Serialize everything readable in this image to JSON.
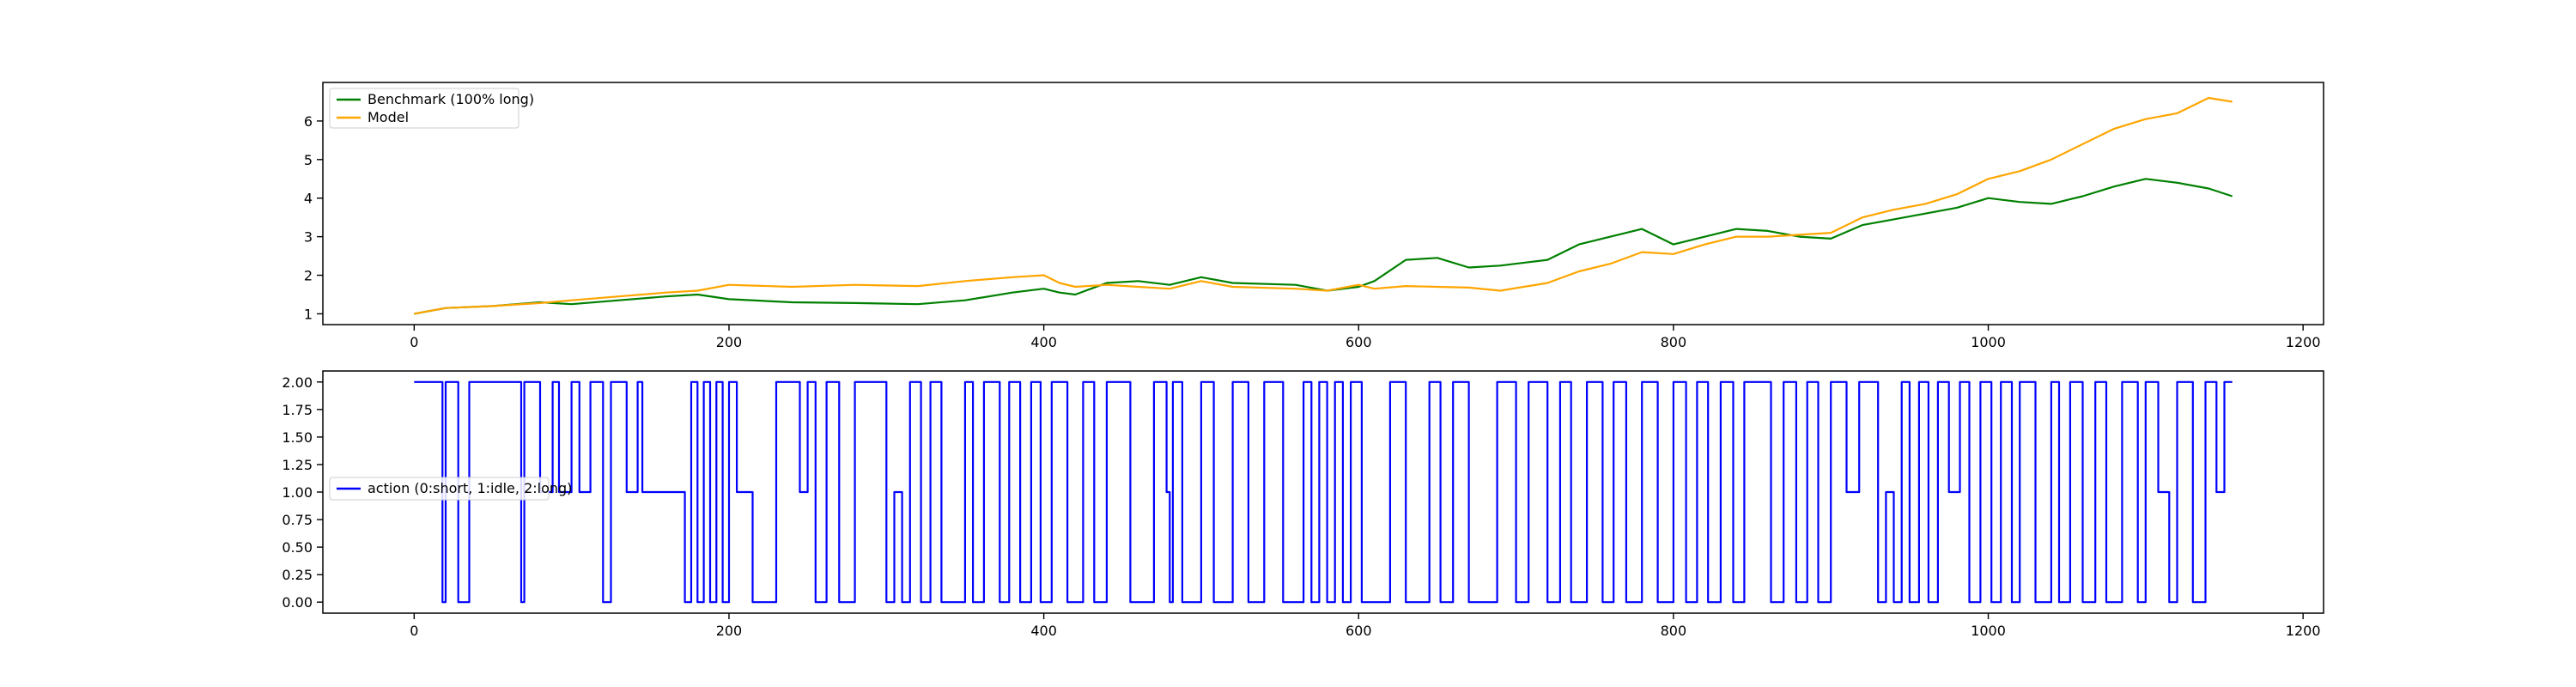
{
  "chart_data": [
    {
      "type": "line",
      "title": "",
      "xlabel": "",
      "ylabel": "",
      "xlim": [
        -58,
        1213
      ],
      "ylim": [
        0.72,
        7.0
      ],
      "x_ticks": [
        0,
        200,
        400,
        600,
        800,
        1000,
        1200
      ],
      "y_ticks": [
        1,
        2,
        3,
        4,
        5,
        6
      ],
      "x_tick_labels": [
        "0",
        "200",
        "400",
        "600",
        "800",
        "1000",
        "1200"
      ],
      "y_tick_labels": [
        "1",
        "2",
        "3",
        "4",
        "5",
        "6"
      ],
      "grid": false,
      "legend_position": "upper-left",
      "series": [
        {
          "name": "Benchmark (100% long)",
          "color": "#008000",
          "x": [
            0,
            20,
            50,
            80,
            100,
            130,
            160,
            180,
            200,
            240,
            280,
            320,
            350,
            380,
            400,
            410,
            420,
            440,
            460,
            480,
            500,
            520,
            560,
            580,
            600,
            610,
            630,
            650,
            670,
            690,
            720,
            740,
            760,
            780,
            800,
            820,
            840,
            860,
            880,
            900,
            920,
            940,
            960,
            980,
            1000,
            1020,
            1040,
            1060,
            1080,
            1100,
            1120,
            1140,
            1155
          ],
          "y": [
            1.0,
            1.15,
            1.2,
            1.3,
            1.25,
            1.35,
            1.45,
            1.5,
            1.38,
            1.3,
            1.28,
            1.25,
            1.35,
            1.55,
            1.65,
            1.55,
            1.5,
            1.8,
            1.85,
            1.75,
            1.95,
            1.8,
            1.75,
            1.6,
            1.7,
            1.85,
            2.4,
            2.45,
            2.2,
            2.25,
            2.4,
            2.8,
            3.0,
            3.2,
            2.8,
            3.0,
            3.2,
            3.15,
            3.0,
            2.95,
            3.3,
            3.45,
            3.6,
            3.75,
            4.0,
            3.9,
            3.85,
            4.05,
            4.3,
            4.5,
            4.4,
            4.25,
            4.05
          ]
        },
        {
          "name": "Model",
          "color": "#FFA500",
          "x": [
            0,
            20,
            50,
            80,
            100,
            130,
            160,
            180,
            200,
            240,
            280,
            320,
            350,
            380,
            400,
            410,
            420,
            440,
            460,
            480,
            500,
            520,
            560,
            580,
            600,
            610,
            630,
            650,
            670,
            690,
            720,
            740,
            760,
            780,
            800,
            820,
            840,
            860,
            880,
            900,
            920,
            940,
            960,
            980,
            1000,
            1020,
            1040,
            1060,
            1080,
            1100,
            1120,
            1140,
            1155
          ],
          "y": [
            1.0,
            1.15,
            1.2,
            1.28,
            1.35,
            1.45,
            1.55,
            1.6,
            1.75,
            1.7,
            1.75,
            1.72,
            1.85,
            1.95,
            2.0,
            1.8,
            1.7,
            1.75,
            1.7,
            1.65,
            1.85,
            1.7,
            1.65,
            1.6,
            1.75,
            1.65,
            1.72,
            1.7,
            1.68,
            1.6,
            1.8,
            2.1,
            2.3,
            2.6,
            2.55,
            2.8,
            3.0,
            3.0,
            3.05,
            3.1,
            3.5,
            3.7,
            3.85,
            4.1,
            4.5,
            4.7,
            5.0,
            5.4,
            5.8,
            6.05,
            6.2,
            6.6,
            6.5
          ]
        }
      ]
    },
    {
      "type": "line",
      "title": "",
      "xlabel": "",
      "ylabel": "",
      "xlim": [
        -58,
        1213
      ],
      "ylim": [
        -0.1,
        2.1
      ],
      "x_ticks": [
        0,
        200,
        400,
        600,
        800,
        1000,
        1200
      ],
      "y_ticks": [
        0.0,
        0.25,
        0.5,
        0.75,
        1.0,
        1.25,
        1.5,
        1.75,
        2.0
      ],
      "x_tick_labels": [
        "0",
        "200",
        "400",
        "600",
        "800",
        "1000",
        "1200"
      ],
      "y_tick_labels": [
        "0.00",
        "0.25",
        "0.50",
        "0.75",
        "1.00",
        "1.25",
        "1.50",
        "1.75",
        "2.00"
      ],
      "grid": false,
      "legend_position": "center-left",
      "series": [
        {
          "name": "action (0:short, 1:idle, 2:long)",
          "color": "#0000FF",
          "step": true,
          "x": [
            0,
            18,
            20,
            28,
            35,
            68,
            70,
            80,
            88,
            92,
            100,
            105,
            112,
            120,
            125,
            135,
            142,
            145,
            172,
            176,
            180,
            184,
            188,
            192,
            196,
            200,
            205,
            215,
            230,
            245,
            250,
            255,
            262,
            270,
            280,
            300,
            305,
            310,
            315,
            322,
            328,
            335,
            350,
            355,
            362,
            372,
            378,
            385,
            392,
            398,
            405,
            415,
            425,
            432,
            440,
            455,
            470,
            478,
            480,
            482,
            488,
            500,
            508,
            520,
            530,
            540,
            552,
            565,
            570,
            575,
            580,
            585,
            590,
            595,
            602,
            620,
            630,
            645,
            652,
            660,
            670,
            688,
            700,
            708,
            720,
            728,
            735,
            745,
            755,
            762,
            770,
            780,
            790,
            800,
            808,
            815,
            822,
            830,
            838,
            845,
            862,
            870,
            878,
            885,
            892,
            900,
            910,
            918,
            930,
            935,
            940,
            945,
            950,
            956,
            962,
            968,
            975,
            982,
            988,
            995,
            1002,
            1008,
            1015,
            1020,
            1030,
            1040,
            1045,
            1052,
            1060,
            1068,
            1075,
            1085,
            1095,
            1100,
            1108,
            1115,
            1120,
            1130,
            1138,
            1145,
            1150,
            1155
          ],
          "y": [
            2,
            0,
            2,
            0,
            2,
            0,
            2,
            1,
            2,
            1,
            2,
            1,
            2,
            0,
            2,
            1,
            2,
            1,
            0,
            2,
            0,
            2,
            0,
            2,
            0,
            2,
            1,
            0,
            2,
            1,
            2,
            0,
            2,
            0,
            2,
            0,
            1,
            0,
            2,
            0,
            2,
            0,
            2,
            0,
            2,
            0,
            2,
            0,
            2,
            0,
            2,
            0,
            2,
            0,
            2,
            0,
            2,
            1,
            0,
            2,
            0,
            2,
            0,
            2,
            0,
            2,
            0,
            2,
            0,
            2,
            0,
            2,
            0,
            2,
            0,
            2,
            0,
            2,
            0,
            2,
            0,
            2,
            0,
            2,
            0,
            2,
            0,
            2,
            0,
            2,
            0,
            2,
            0,
            2,
            0,
            2,
            0,
            2,
            0,
            2,
            0,
            2,
            0,
            2,
            0,
            2,
            1,
            2,
            0,
            1,
            0,
            2,
            0,
            2,
            0,
            2,
            1,
            2,
            0,
            2,
            0,
            2,
            0,
            2,
            0,
            2,
            0,
            2,
            0,
            2,
            0,
            2,
            0,
            2,
            1,
            0,
            2,
            0,
            2,
            1,
            2,
            2
          ]
        }
      ]
    }
  ]
}
